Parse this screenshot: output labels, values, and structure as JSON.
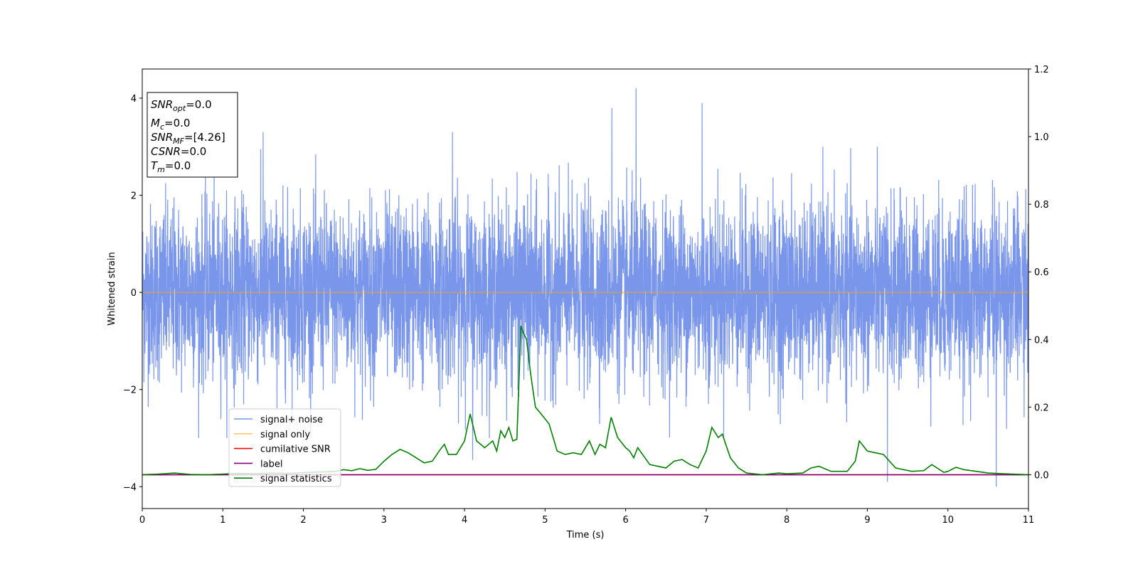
{
  "colors": {
    "signal_noise": "#4169e1",
    "signal_only": "#ffa500",
    "cumilative_snr": "#ff0000",
    "label": "#800080",
    "signal_statistics": "#008000"
  },
  "info_box": {
    "snr_opt": {
      "main": "SNR",
      "sub": "opt",
      "value": "=0.0"
    },
    "mc": {
      "main": "M",
      "sub": "c",
      "value": "=0.0"
    },
    "snr_mf": {
      "main": "SNR",
      "sub": "MF",
      "value": "=[4.26]"
    },
    "csnr": {
      "main": "CSNR",
      "value": "=0.0"
    },
    "tm": {
      "main": "T",
      "sub": "m",
      "value": "=0.0"
    }
  },
  "legend": [
    {
      "key": "signal_noise",
      "label": "signal+ noise"
    },
    {
      "key": "signal_only",
      "label": "signal only"
    },
    {
      "key": "cumilative_snr",
      "label": "cumilative SNR"
    },
    {
      "key": "label",
      "label": "label"
    },
    {
      "key": "signal_statistics",
      "label": "signal statistics"
    }
  ],
  "chart_data": {
    "type": "line",
    "xlabel": "Time (s)",
    "ylabel": "Whitened strain",
    "xlim": [
      0,
      11
    ],
    "ylim": [
      -4.45,
      4.6
    ],
    "y2lim": [
      -0.1,
      1.2
    ],
    "xticks": [
      "0",
      "1",
      "2",
      "3",
      "4",
      "5",
      "6",
      "7",
      "8",
      "9",
      "10",
      "11"
    ],
    "yticks": [
      "-4",
      "-2",
      "0",
      "2",
      "4"
    ],
    "y2ticks": [
      "0.0",
      "0.2",
      "0.4",
      "0.6",
      "0.8",
      "1.0",
      "1.2"
    ],
    "grid": false,
    "legend_position": "lower-left",
    "series": [
      {
        "name": "signal+ noise",
        "axis": "left",
        "description_values": "dense whitened noise, approx. between -4.0 and 4.2",
        "peaks": [
          {
            "x": 1.5,
            "y": 3.3
          },
          {
            "x": 3.85,
            "y": 3.3
          },
          {
            "x": 5.83,
            "y": 3.8
          },
          {
            "x": 6.13,
            "y": 4.2
          },
          {
            "x": 6.95,
            "y": 3.9
          },
          {
            "x": 10.6,
            "y": -4.0
          },
          {
            "x": 9.25,
            "y": -3.9
          },
          {
            "x": 4.1,
            "y": -3.45
          }
        ]
      },
      {
        "name": "signal only",
        "axis": "left",
        "x": [
          0,
          11
        ],
        "y": [
          0,
          0
        ]
      },
      {
        "name": "cumilative SNR",
        "axis": "right",
        "x": [
          0,
          11
        ],
        "y": [
          0,
          0
        ]
      },
      {
        "name": "label",
        "axis": "right",
        "x": [
          0,
          11
        ],
        "y": [
          0,
          0
        ]
      },
      {
        "name": "signal statistics",
        "axis": "right",
        "x": [
          0,
          0.2,
          0.4,
          0.6,
          0.8,
          1.0,
          1.2,
          1.4,
          1.6,
          1.8,
          2.0,
          2.2,
          2.4,
          2.5,
          2.6,
          2.7,
          2.8,
          2.9,
          3.0,
          3.1,
          3.2,
          3.3,
          3.4,
          3.5,
          3.6,
          3.7,
          3.75,
          3.8,
          3.9,
          4.0,
          4.07,
          4.15,
          4.25,
          4.35,
          4.4,
          4.45,
          4.5,
          4.55,
          4.6,
          4.65,
          4.7,
          4.73,
          4.77,
          4.82,
          4.88,
          4.95,
          5.05,
          5.15,
          5.25,
          5.35,
          5.45,
          5.55,
          5.62,
          5.68,
          5.75,
          5.82,
          5.9,
          6.0,
          6.05,
          6.1,
          6.15,
          6.3,
          6.5,
          6.6,
          6.7,
          6.8,
          6.9,
          7.0,
          7.07,
          7.15,
          7.2,
          7.3,
          7.4,
          7.5,
          7.7,
          7.9,
          8.0,
          8.2,
          8.3,
          8.4,
          8.55,
          8.75,
          8.85,
          8.9,
          9.0,
          9.1,
          9.2,
          9.35,
          9.55,
          9.7,
          9.8,
          9.95,
          10.0,
          10.1,
          10.2,
          10.5,
          10.8,
          11.0
        ],
        "y": [
          0.0,
          0.002,
          0.005,
          0.001,
          0.0,
          0.002,
          0.004,
          0.003,
          0.005,
          0.004,
          0.006,
          0.008,
          0.01,
          0.015,
          0.012,
          0.018,
          0.013,
          0.016,
          0.04,
          0.06,
          0.075,
          0.065,
          0.05,
          0.035,
          0.04,
          0.075,
          0.09,
          0.06,
          0.06,
          0.1,
          0.18,
          0.1,
          0.08,
          0.1,
          0.07,
          0.13,
          0.11,
          0.14,
          0.1,
          0.105,
          0.44,
          0.42,
          0.4,
          0.3,
          0.2,
          0.18,
          0.15,
          0.07,
          0.06,
          0.065,
          0.06,
          0.1,
          0.06,
          0.09,
          0.08,
          0.17,
          0.11,
          0.08,
          0.07,
          0.05,
          0.08,
          0.03,
          0.02,
          0.04,
          0.045,
          0.03,
          0.02,
          0.07,
          0.14,
          0.11,
          0.12,
          0.05,
          0.02,
          0.005,
          0.0,
          0.005,
          0.003,
          0.005,
          0.02,
          0.025,
          0.01,
          0.01,
          0.04,
          0.1,
          0.07,
          0.065,
          0.06,
          0.02,
          0.01,
          0.012,
          0.03,
          0.007,
          0.01,
          0.022,
          0.015,
          0.005,
          0.002,
          0.0
        ]
      }
    ]
  }
}
